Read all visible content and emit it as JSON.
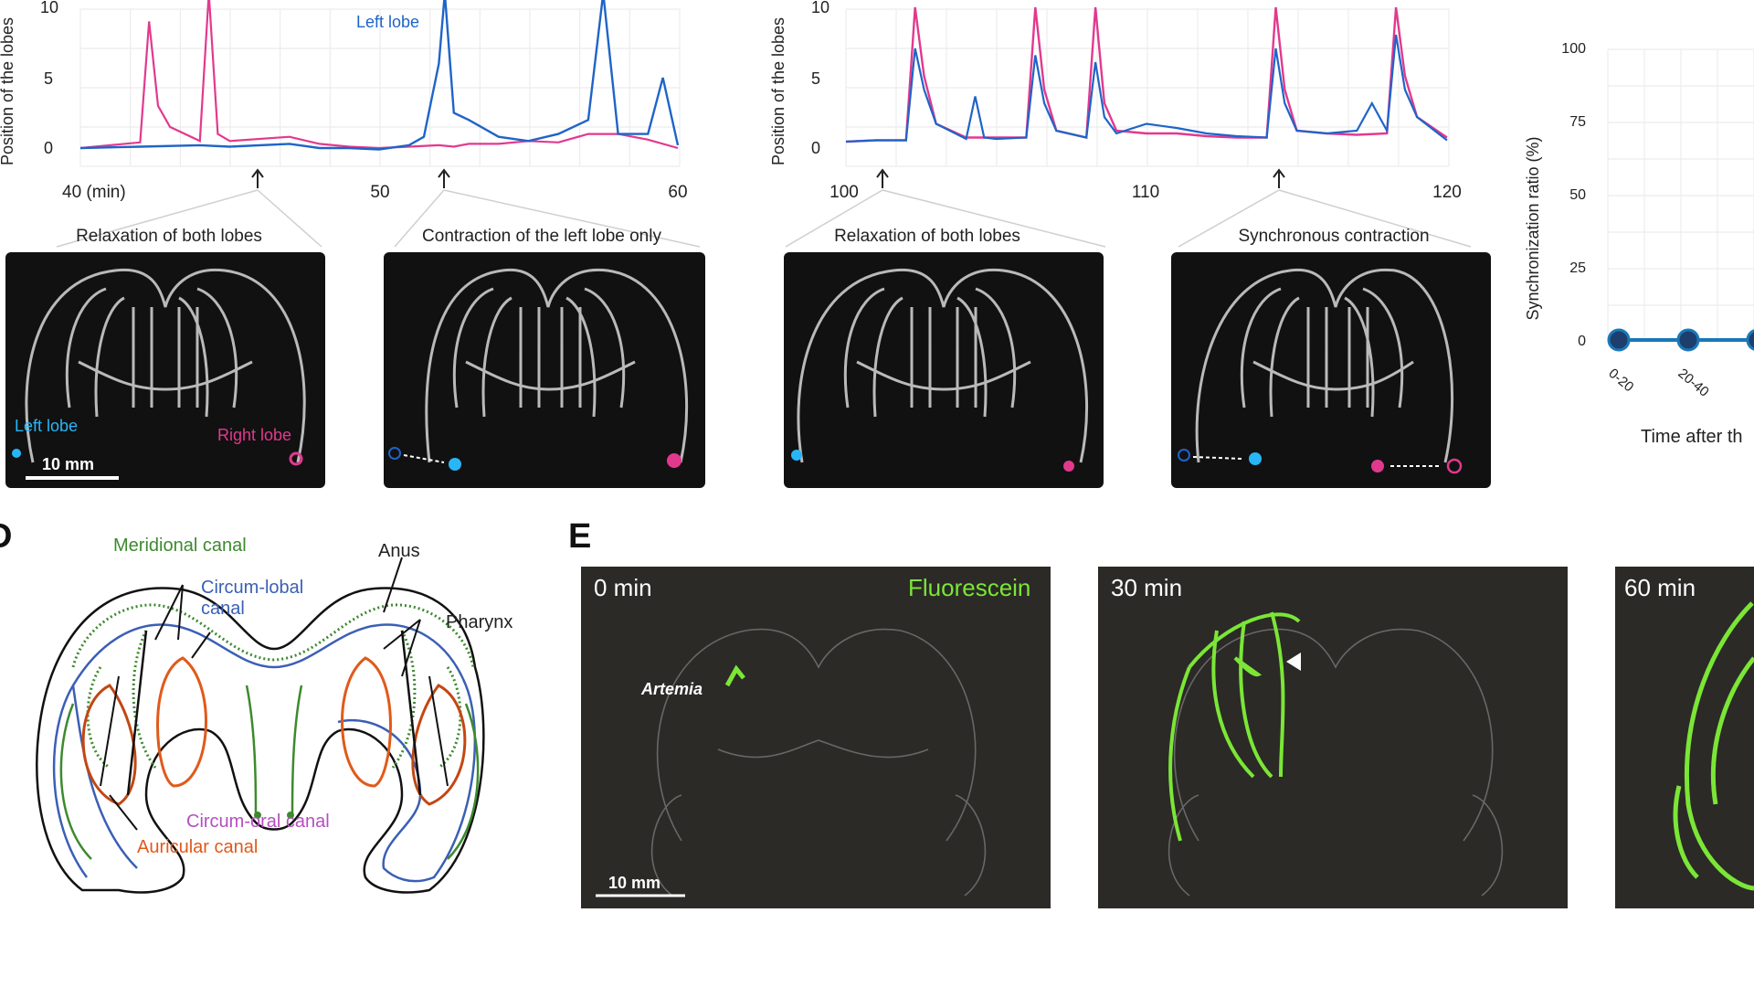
{
  "colors": {
    "left_lobe": "#1f64c8",
    "right_lobe": "#e2398e",
    "sync": "#1a79b7",
    "fluorescein": "#7be636",
    "meridional": "#3d8a2e",
    "circumlobal": "#3b5fb5",
    "circumoral": "#b54fc0",
    "auricular": "#e05a1a"
  },
  "panel_b": {
    "ylabel": "Position of the lobes",
    "yticks": [
      "0",
      "5",
      "10"
    ],
    "series_label": "Left lobe",
    "xticks": [
      "40 (min)",
      "50",
      "60"
    ],
    "captions": [
      "Relaxation of both lobes",
      "Contraction of the left lobe only"
    ],
    "photo_labels": {
      "left": "Left lobe",
      "right": "Right lobe",
      "scale": "10 mm"
    }
  },
  "panel_c": {
    "ylabel": "Position of the lobes",
    "yticks": [
      "0",
      "5",
      "10"
    ],
    "xticks": [
      "100",
      "110",
      "120"
    ],
    "captions": [
      "Relaxation of both lobes",
      "Synchronous contraction"
    ]
  },
  "panel_sync": {
    "ylabel": "Synchronization ratio (%)",
    "yticks": [
      "0",
      "25",
      "50",
      "75",
      "100"
    ],
    "xticks": [
      "0-20",
      "20-40"
    ],
    "xlabel": "Time after th"
  },
  "panel_d": {
    "letter": "D",
    "labels": {
      "meridional": "Meridional canal",
      "circumlobal": "Circum-lobal canal",
      "anus": "Anus",
      "pharynx": "Pharynx",
      "circumoral": "Circum-oral canal",
      "auricular": "Auricular canal"
    }
  },
  "panel_e": {
    "letter": "E",
    "frames": [
      "0 min",
      "30 min",
      "60 min"
    ],
    "fluorescein": "Fluorescein",
    "artemia": "Artemia",
    "scale": "10 mm"
  },
  "chart_data": [
    {
      "type": "line",
      "title": "",
      "xlabel": "",
      "ylabel": "Position of the lobes",
      "xlim": [
        40,
        60
      ],
      "ylim": [
        0,
        10
      ],
      "series": [
        {
          "name": "Left lobe",
          "color": "#1f64c8",
          "x": [
            40,
            42,
            44,
            45,
            47,
            48,
            49,
            50,
            51,
            51.5,
            52,
            52.2,
            52.5,
            53,
            54,
            55,
            56,
            57,
            57.5,
            58,
            58.5,
            59,
            59.5,
            60
          ],
          "y": [
            0,
            0.1,
            0.2,
            0.1,
            0.3,
            0,
            0,
            -0.1,
            0.2,
            0.8,
            6,
            11,
            2.5,
            2,
            0.8,
            0.5,
            1,
            2,
            11,
            1,
            1,
            1,
            5,
            0.2
          ]
        },
        {
          "series_color": "#e2398e",
          "color": "#e2398e",
          "x": [
            40,
            41,
            42,
            42.3,
            42.6,
            43,
            44,
            44.3,
            44.6,
            45,
            47,
            48,
            49,
            50,
            51,
            52,
            52.5,
            53,
            54,
            55,
            56,
            57,
            58,
            59,
            60
          ],
          "y": [
            0,
            0.2,
            0.4,
            9,
            3,
            1.5,
            0.5,
            11,
            1,
            0.5,
            0.8,
            0.3,
            0.1,
            0,
            0.1,
            0.2,
            0.1,
            0.3,
            0.3,
            0.5,
            0.4,
            1,
            1,
            0.6,
            0
          ]
        }
      ]
    },
    {
      "type": "line",
      "title": "",
      "xlabel": "",
      "ylabel": "Position of the lobes",
      "xlim": [
        100,
        120
      ],
      "ylim": [
        0,
        10
      ],
      "series": [
        {
          "color": "#1f64c8",
          "x": [
            100,
            101,
            102,
            102.3,
            102.6,
            103,
            104,
            104.3,
            104.6,
            105,
            106,
            106.3,
            106.6,
            107,
            108,
            108.3,
            108.6,
            109,
            110,
            111,
            112,
            113,
            114,
            114.3,
            114.6,
            115,
            116,
            117,
            117.5,
            118,
            118.3,
            118.6,
            119,
            120
          ],
          "y": [
            0.2,
            0.3,
            0.3,
            7,
            4,
            1.5,
            0.4,
            3.5,
            0.5,
            0.4,
            0.5,
            6.5,
            3,
            1,
            0.5,
            6,
            2,
            0.8,
            1.5,
            1.2,
            0.8,
            0.6,
            0.5,
            7,
            3,
            1,
            0.8,
            1,
            3,
            1,
            8,
            4,
            2,
            0.3
          ]
        },
        {
          "color": "#e2398e",
          "x": [
            100,
            101,
            102,
            102.3,
            102.6,
            103,
            104,
            105,
            106,
            106.3,
            106.6,
            107,
            108,
            108.3,
            108.6,
            109,
            110,
            111,
            112,
            113,
            114,
            114.3,
            114.6,
            115,
            116,
            117,
            118,
            118.3,
            118.6,
            119,
            120
          ],
          "y": [
            0.2,
            0.3,
            0.3,
            10,
            5,
            1.5,
            0.5,
            0.5,
            0.5,
            10,
            4,
            1,
            0.5,
            10,
            3,
            1,
            0.8,
            0.8,
            0.6,
            0.5,
            0.5,
            10,
            4,
            1,
            0.8,
            0.7,
            0.8,
            10,
            5,
            2,
            0.5
          ]
        }
      ]
    },
    {
      "type": "line",
      "title": "",
      "xlabel": "Time after th",
      "ylabel": "Synchronization ratio (%)",
      "categories": [
        "0-20",
        "20-40",
        ""
      ],
      "ylim": [
        0,
        100
      ],
      "series": [
        {
          "color": "#1a79b7",
          "values": [
            0,
            0,
            0
          ]
        }
      ]
    }
  ]
}
